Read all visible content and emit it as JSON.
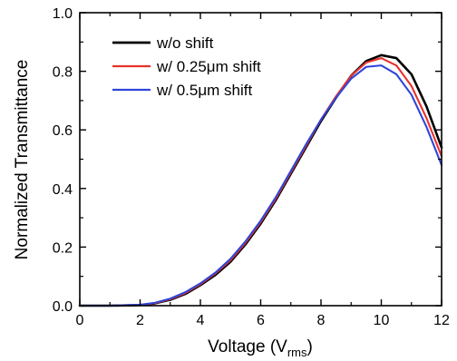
{
  "chart_data": {
    "type": "line",
    "title": "",
    "xlabel": "Voltage (V",
    "xlabel_sub": "rms",
    "xlabel_close": ")",
    "ylabel": "Normalized Transmittance",
    "xlim": [
      0,
      12
    ],
    "ylim": [
      0,
      1.0
    ],
    "x_ticks": [
      "0",
      "2",
      "4",
      "6",
      "8",
      "10",
      "12"
    ],
    "y_ticks": [
      "0.0",
      "0.2",
      "0.4",
      "0.6",
      "0.8",
      "1.0"
    ],
    "grid": false,
    "legend_position": "top-left",
    "x": [
      0,
      1,
      2,
      2.5,
      3,
      3.5,
      4,
      4.5,
      5,
      5.5,
      6,
      6.5,
      7,
      7.5,
      8,
      8.5,
      9,
      9.5,
      10,
      10.5,
      11,
      11.5,
      12
    ],
    "series": [
      {
        "name": "w/o shift",
        "color": "#000000",
        "values": [
          0,
          0,
          0.002,
          0.008,
          0.02,
          0.04,
          0.07,
          0.105,
          0.15,
          0.21,
          0.28,
          0.36,
          0.45,
          0.54,
          0.63,
          0.71,
          0.785,
          0.835,
          0.855,
          0.845,
          0.79,
          0.68,
          0.54
        ]
      },
      {
        "name": "w/ 0.25μm shift",
        "color": "#e8322c",
        "values": [
          0,
          0,
          0.002,
          0.009,
          0.022,
          0.043,
          0.073,
          0.11,
          0.155,
          0.215,
          0.285,
          0.365,
          0.455,
          0.545,
          0.635,
          0.715,
          0.785,
          0.83,
          0.845,
          0.82,
          0.75,
          0.64,
          0.51
        ]
      },
      {
        "name": "w/ 0.5μm shift",
        "color": "#2f45d8",
        "values": [
          0,
          0,
          0.003,
          0.01,
          0.024,
          0.046,
          0.076,
          0.113,
          0.16,
          0.22,
          0.29,
          0.37,
          0.46,
          0.55,
          0.635,
          0.71,
          0.775,
          0.815,
          0.82,
          0.79,
          0.72,
          0.61,
          0.48
        ]
      }
    ]
  }
}
